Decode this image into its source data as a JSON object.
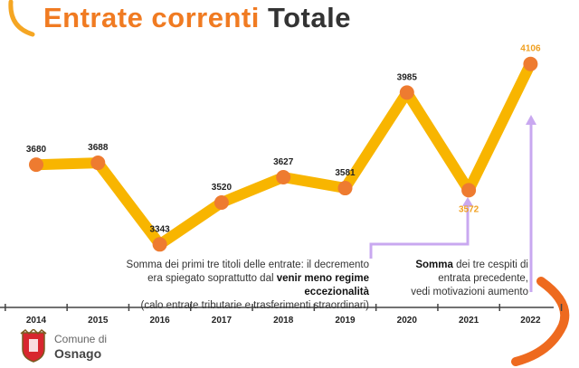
{
  "header": {
    "title_part1": "Entrate correnti",
    "title_part2": "Totale"
  },
  "colors": {
    "accent": "#f07b22",
    "line": "#f8b500",
    "marker": "#ee7b30",
    "highlight_label": "#f0a020",
    "arrow": "#c9a8f0",
    "title_dark": "#333333"
  },
  "chart_data": {
    "type": "line",
    "categories": [
      "2014",
      "2015",
      "2016",
      "2017",
      "2018",
      "2019",
      "2020",
      "2021",
      "2022"
    ],
    "values": [
      3680,
      3688,
      3343,
      3520,
      3627,
      3581,
      3985,
      3572,
      4106
    ],
    "value_labels": [
      "3680",
      "3688",
      "3343",
      "3520",
      "3627",
      "3581",
      "3985",
      "3572",
      "4106"
    ],
    "highlighted": [
      "2021",
      "2022"
    ],
    "ylim": [
      3000,
      4300
    ],
    "grid": false,
    "legend": "none"
  },
  "notes": {
    "left": {
      "line1": "Somma dei primi tre titoli delle entrate: il decremento",
      "line2a": "era spiegato soprattutto dal ",
      "line2b": "venir meno regime eccezionalità",
      "line3": "(calo entrate tributarie e trasferimenti straordinari)"
    },
    "right": {
      "bold": "Somma",
      "rest1": " dei tre cespiti di",
      "line2": "entrata precedente,",
      "line3": "vedi motivazioni aumento"
    }
  },
  "footer": {
    "org_line1": "Comune di",
    "org_line2": "Osnago"
  }
}
